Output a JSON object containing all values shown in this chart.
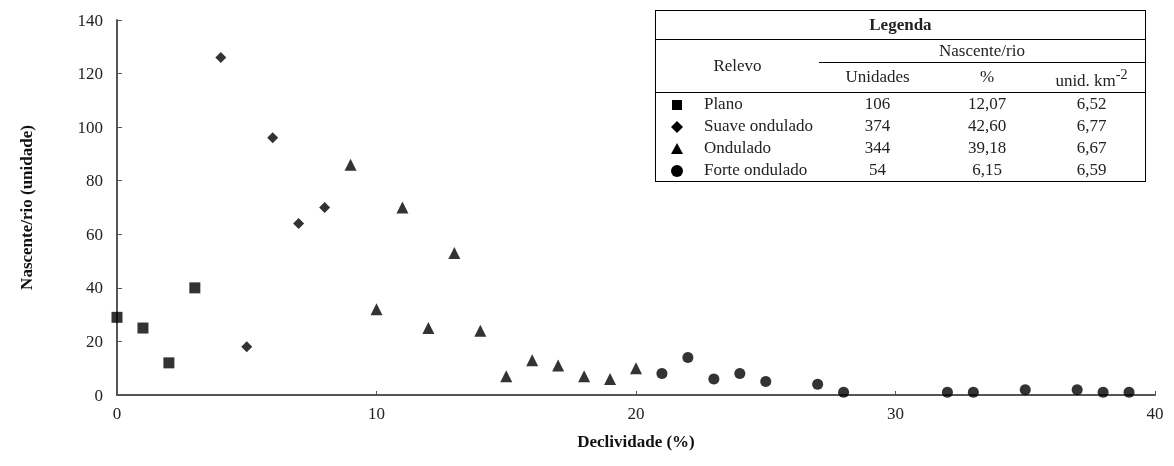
{
  "chart_data": {
    "type": "scatter",
    "xlabel": "Declividade (%)",
    "ylabel": "Nascente/rio (unidade)",
    "xlim": [
      0,
      40
    ],
    "xticks": [
      0,
      10,
      20,
      30,
      40
    ],
    "ylim": [
      0,
      140
    ],
    "yticks": [
      0,
      20,
      40,
      60,
      80,
      100,
      120,
      140
    ],
    "grid": false,
    "legend": "top right",
    "legend_title": "Legenda",
    "annotations": [
      "Relevo",
      "Nascente/rio",
      "Unidades",
      "%",
      "unid. km$^{-2}$",
      "106",
      "12,07",
      "6,52",
      "374",
      "42,60",
      "6,77",
      "344",
      "39,18",
      "6,67",
      "54",
      "6,15",
      "6,59"
    ],
    "series": [
      {
        "name": "Plano",
        "color": "#000000",
        "marker": "square",
        "x": [
          0,
          1,
          2,
          3
        ],
        "values": [
          29,
          25,
          12,
          40
        ]
      },
      {
        "name": "Suave ondulado",
        "color": "#000000",
        "marker": "diamond",
        "x": [
          4,
          5,
          6,
          7,
          8
        ],
        "values": [
          126,
          18,
          96,
          64,
          70
        ]
      },
      {
        "name": "Ondulado",
        "color": "#000000",
        "marker": "triangle",
        "x": [
          9,
          10,
          11,
          12,
          13,
          14,
          15,
          16,
          17,
          18,
          19,
          20
        ],
        "values": [
          86,
          32,
          70,
          25,
          53,
          24,
          7,
          13,
          11,
          7,
          6,
          10
        ]
      },
      {
        "name": "Forte ondulado",
        "color": "#000000",
        "marker": "circle",
        "x": [
          21,
          22,
          23,
          24,
          25,
          27,
          28,
          32,
          33,
          35,
          37,
          38,
          39
        ],
        "values": [
          8,
          14,
          6,
          8,
          5,
          4,
          1,
          1,
          1,
          2,
          2,
          1,
          1
        ]
      }
    ]
  }
}
